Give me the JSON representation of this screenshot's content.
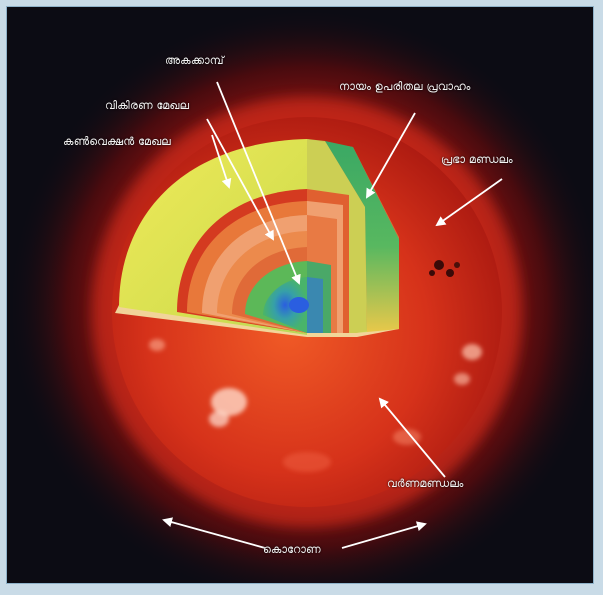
{
  "labels": {
    "core": "അകക്കാമ്പ്",
    "radiative_zone": "വികിരണ മേഖല",
    "convective_zone": "കൺവെക്ഷൻ മേഖല",
    "magnetic_flow": "നായം ഉപരിതല പ്രവാഹം",
    "photosphere": "പ്രഭാ മണ്ഡലം",
    "chromosphere": "വർണമണ്ഡലം",
    "corona": "കൊറോണ"
  },
  "colors": {
    "background": "#0c0c14",
    "glow": "#e0201a",
    "sun_surface": "#d42a12",
    "convective_yellow": "#e6e04a",
    "radiative_orange": "#e05a2a",
    "core_green": "#3aa860",
    "core_blue": "#2e6ad8",
    "flow_green": "#35a860",
    "arrow": "#ffffff"
  }
}
